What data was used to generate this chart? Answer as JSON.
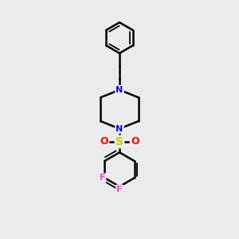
{
  "background_color": "#ebebeb",
  "bond_color": "#000000",
  "bond_width": 1.8,
  "N_color": "#0000ff",
  "O_color": "#ff0000",
  "S_color": "#cccc00",
  "F_color": "#ff44cc",
  "figsize": [
    3.0,
    3.0
  ],
  "dpi": 100,
  "xlim": [
    0,
    10
  ],
  "ylim": [
    0,
    10
  ]
}
